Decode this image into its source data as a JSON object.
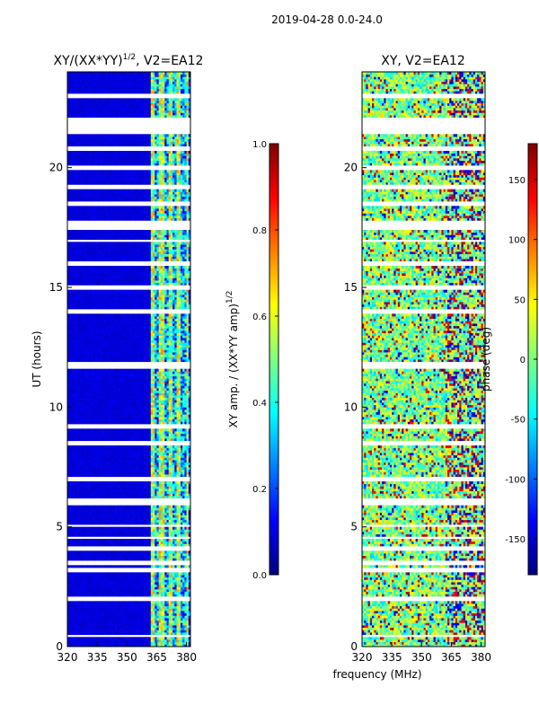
{
  "page": {
    "suptitle": "2019-04-28 0.0-24.0",
    "xlabel": "frequency (MHz)"
  },
  "colors": {
    "jet": [
      "#00007f",
      "#0000ff",
      "#007fff",
      "#00ffff",
      "#7fff7f",
      "#ffff00",
      "#ff7f00",
      "#ff0000",
      "#7f0000"
    ]
  },
  "chart_data": [
    {
      "type": "heatmap",
      "title": "XY/(XX*YY)",
      "title_sup": "1/2",
      "title_suffix": ", V2=EA12",
      "xlabel": "",
      "ylabel": "UT (hours)",
      "xlim": [
        320,
        382
      ],
      "ylim": [
        0,
        24
      ],
      "xticks": [
        "320",
        "335",
        "350",
        "365",
        "380"
      ],
      "yticks": [
        "0",
        "5",
        "10",
        "15",
        "20"
      ],
      "colorbar": {
        "label": "XY amp. / (XX*YY amp)",
        "label_sup": "1/2",
        "range": [
          0.0,
          1.0
        ],
        "ticks": [
          "0.0",
          "0.2",
          "0.4",
          "0.6",
          "0.8",
          "1.0"
        ]
      },
      "blank_rows_ut": [
        0.45,
        2.0,
        3.2,
        3.5,
        4.1,
        4.55,
        5.05,
        5.95,
        6.15,
        7.0,
        8.5,
        9.2,
        11.7,
        11.85,
        14.0,
        15.0,
        16.0,
        16.95,
        17.5,
        17.7,
        18.5,
        19.2,
        20.0,
        20.8,
        21.5,
        21.7,
        22.0,
        23.0
      ],
      "blank_rows_ut_wide": [
        6.05,
        11.8,
        17.6,
        21.8
      ],
      "description": "low (~0.05) amplitude 320-362 MHz; high (0.3-0.9) amplitude banded channels 362-380 MHz"
    },
    {
      "type": "heatmap",
      "title": "XY, V2=EA12",
      "xlabel": "",
      "ylabel": "",
      "xlim": [
        320,
        382
      ],
      "ylim": [
        0,
        24
      ],
      "xticks": [
        "320",
        "335",
        "350",
        "365",
        "380"
      ],
      "yticks": [
        "0",
        "5",
        "10",
        "15",
        "20"
      ],
      "colorbar": {
        "label": "phase (deg)",
        "range": [
          -180,
          180
        ],
        "ticks": [
          "-150",
          "-100",
          "-50",
          "0",
          "50",
          "100",
          "150"
        ]
      },
      "blank_rows_ut": [
        0.45,
        2.0,
        3.2,
        3.5,
        4.1,
        4.55,
        5.05,
        5.95,
        6.15,
        7.0,
        8.5,
        9.2,
        11.7,
        11.85,
        14.0,
        15.0,
        16.0,
        16.95,
        17.5,
        17.7,
        18.5,
        19.2,
        20.0,
        20.8,
        21.5,
        21.7,
        22.0,
        23.0
      ],
      "blank_rows_ut_wide": [
        6.05,
        11.8,
        17.6,
        21.8
      ],
      "description": "noisy phase mostly in -50 to 50 deg range with red/blue wrapped patches"
    }
  ]
}
